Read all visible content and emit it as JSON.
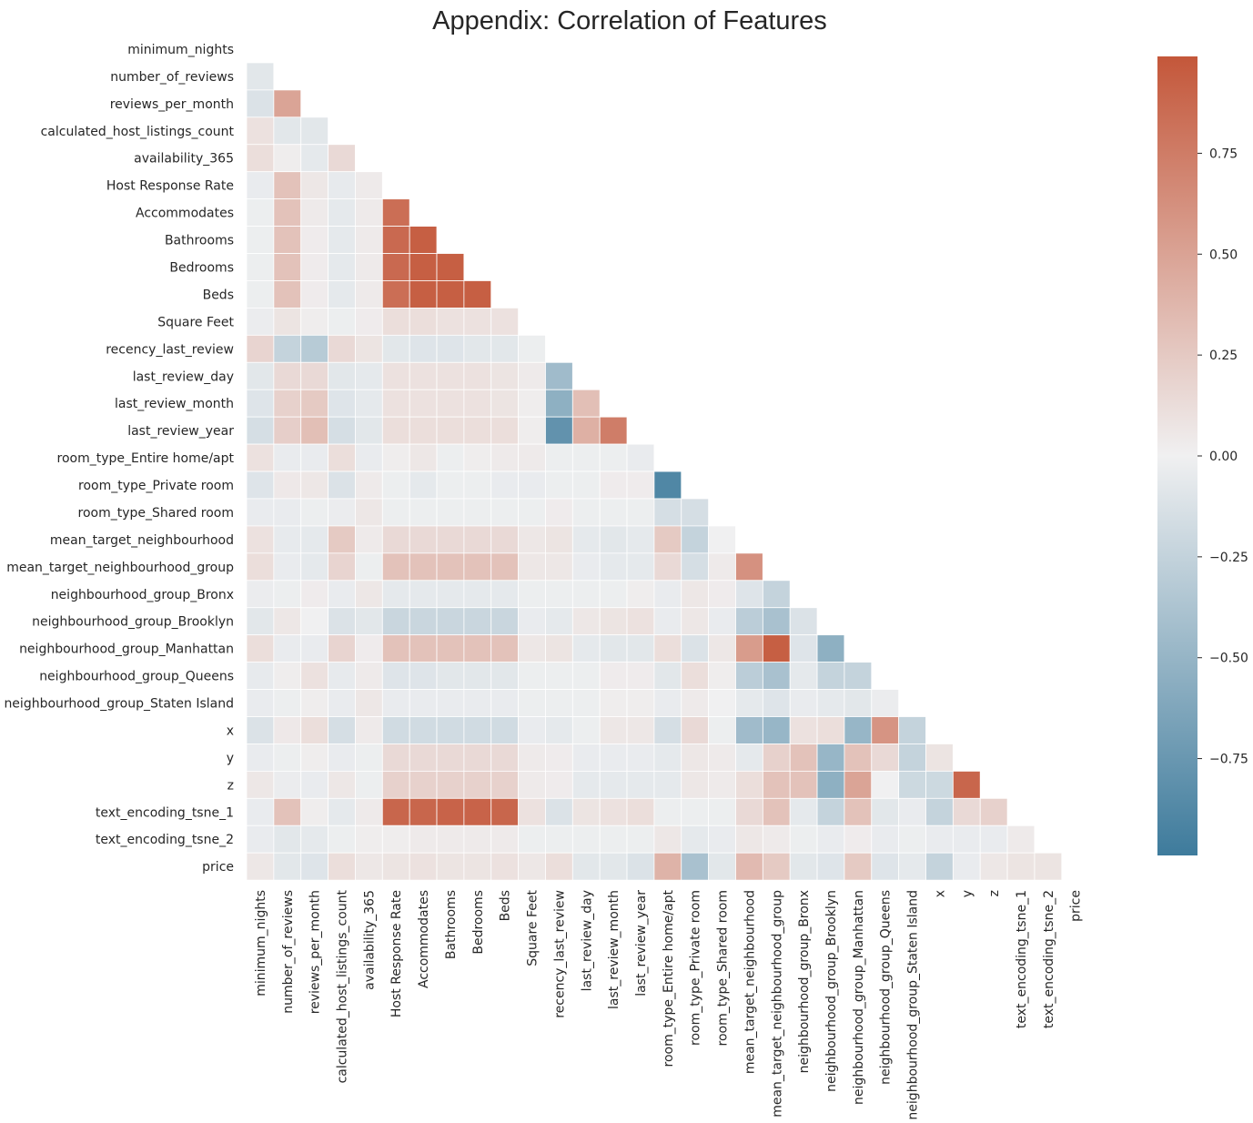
{
  "chart_data": {
    "type": "heatmap",
    "title": "Appendix: Correlation of Features",
    "xlabel": "",
    "ylabel": "",
    "mask": "upper-triangle-and-diagonal",
    "variables": [
      "minimum_nights",
      "number_of_reviews",
      "reviews_per_month",
      "calculated_host_listings_count",
      "availability_365",
      "Host Response Rate",
      "Accommodates",
      "Bathrooms",
      "Bedrooms",
      "Beds",
      "Square Feet",
      "recency_last_review",
      "last_review_day",
      "last_review_month",
      "last_review_year",
      "room_type_Entire home/apt",
      "room_type_Private room",
      "room_type_Shared room",
      "mean_target_neighbourhood",
      "mean_target_neighbourhood_group",
      "neighbourhood_group_Bronx",
      "neighbourhood_group_Brooklyn",
      "neighbourhood_group_Manhattan",
      "neighbourhood_group_Queens",
      "neighbourhood_group_Staten Island",
      "x",
      "y",
      "z",
      "text_encoding_tsne_1",
      "text_encoding_tsne_2",
      "price"
    ],
    "matrix_lower": [
      [],
      [
        -0.08
      ],
      [
        -0.12,
        0.5
      ],
      [
        0.1,
        -0.08,
        -0.08
      ],
      [
        0.12,
        0.02,
        -0.06,
        0.15
      ],
      [
        -0.04,
        0.3,
        0.06,
        -0.05,
        0.04
      ],
      [
        -0.02,
        0.3,
        0.04,
        -0.06,
        0.04,
        0.85
      ],
      [
        -0.02,
        0.3,
        0.03,
        -0.06,
        0.04,
        0.88,
        0.95
      ],
      [
        -0.02,
        0.3,
        0.03,
        -0.06,
        0.04,
        0.88,
        0.95,
        0.95
      ],
      [
        -0.02,
        0.3,
        0.03,
        -0.06,
        0.04,
        0.85,
        0.95,
        0.95,
        0.95
      ],
      [
        -0.03,
        0.08,
        0.02,
        -0.02,
        0.03,
        0.12,
        0.12,
        0.1,
        0.1,
        0.1
      ],
      [
        0.18,
        -0.25,
        -0.32,
        0.15,
        0.08,
        -0.08,
        -0.1,
        -0.1,
        -0.08,
        -0.08,
        -0.02
      ],
      [
        -0.08,
        0.15,
        0.15,
        -0.08,
        -0.06,
        0.1,
        0.1,
        0.1,
        0.1,
        0.08,
        0.04,
        -0.45
      ],
      [
        -0.1,
        0.2,
        0.25,
        -0.1,
        -0.06,
        0.1,
        0.1,
        0.1,
        0.1,
        0.08,
        0.02,
        -0.55,
        0.32
      ],
      [
        -0.15,
        0.22,
        0.32,
        -0.15,
        -0.08,
        0.12,
        0.12,
        0.12,
        0.12,
        0.12,
        0.02,
        -0.8,
        0.42,
        0.75
      ],
      [
        0.1,
        -0.04,
        -0.04,
        0.12,
        -0.04,
        0.02,
        0.06,
        -0.02,
        0.02,
        0.04,
        0.04,
        -0.02,
        -0.02,
        -0.02,
        -0.04
      ],
      [
        -0.1,
        0.05,
        0.06,
        -0.12,
        0.04,
        -0.02,
        -0.06,
        -0.02,
        -0.02,
        -0.04,
        -0.04,
        -0.02,
        -0.02,
        0.03,
        0.03,
        -0.9
      ],
      [
        -0.04,
        -0.04,
        -0.02,
        -0.03,
        0.06,
        -0.02,
        -0.02,
        -0.02,
        -0.02,
        -0.02,
        -0.02,
        0.03,
        -0.02,
        -0.02,
        -0.02,
        -0.15,
        -0.15
      ],
      [
        0.1,
        -0.05,
        -0.06,
        0.25,
        0.04,
        0.15,
        0.15,
        0.15,
        0.15,
        0.15,
        0.06,
        0.08,
        -0.06,
        -0.08,
        -0.06,
        0.25,
        -0.25,
        0.0
      ],
      [
        0.12,
        -0.04,
        -0.06,
        0.18,
        -0.02,
        0.3,
        0.3,
        0.3,
        0.3,
        0.3,
        0.06,
        0.06,
        -0.04,
        -0.06,
        -0.06,
        0.15,
        -0.15,
        0.04,
        0.62
      ],
      [
        -0.03,
        -0.02,
        0.03,
        -0.04,
        0.06,
        -0.06,
        -0.06,
        -0.06,
        -0.06,
        -0.06,
        -0.02,
        -0.02,
        -0.02,
        -0.02,
        0.02,
        -0.04,
        0.06,
        0.03,
        -0.1,
        -0.25
      ],
      [
        -0.08,
        0.06,
        0.0,
        -0.12,
        -0.08,
        -0.22,
        -0.22,
        -0.22,
        -0.22,
        -0.22,
        -0.04,
        -0.06,
        0.06,
        0.08,
        0.1,
        -0.04,
        0.06,
        -0.04,
        -0.3,
        -0.4,
        -0.12
      ],
      [
        0.12,
        -0.04,
        -0.04,
        0.18,
        0.03,
        0.3,
        0.3,
        0.3,
        0.3,
        0.3,
        0.06,
        0.08,
        -0.06,
        -0.08,
        -0.08,
        0.12,
        -0.12,
        0.06,
        0.55,
        0.95,
        -0.1,
        -0.55
      ],
      [
        -0.05,
        0.02,
        0.1,
        -0.05,
        0.04,
        -0.1,
        -0.1,
        -0.08,
        -0.08,
        -0.08,
        -0.02,
        -0.02,
        -0.02,
        0.03,
        0.03,
        -0.08,
        0.12,
        0.02,
        -0.3,
        -0.4,
        -0.06,
        -0.25,
        -0.25
      ],
      [
        -0.04,
        -0.02,
        0.02,
        -0.04,
        0.06,
        -0.04,
        -0.04,
        -0.04,
        -0.04,
        -0.04,
        -0.02,
        -0.02,
        -0.02,
        0.02,
        0.02,
        -0.04,
        0.04,
        0.0,
        -0.06,
        -0.1,
        -0.04,
        -0.06,
        -0.08,
        -0.03
      ],
      [
        -0.12,
        0.05,
        0.12,
        -0.15,
        0.04,
        -0.18,
        -0.18,
        -0.18,
        -0.18,
        -0.18,
        -0.04,
        -0.06,
        -0.02,
        0.06,
        0.06,
        -0.15,
        0.15,
        -0.02,
        -0.45,
        -0.5,
        0.1,
        0.12,
        -0.5,
        0.6,
        -0.25
      ],
      [
        -0.04,
        -0.02,
        0.02,
        -0.04,
        -0.02,
        0.15,
        0.15,
        0.15,
        0.15,
        0.15,
        0.04,
        0.03,
        -0.04,
        -0.04,
        -0.04,
        -0.06,
        0.06,
        0.04,
        -0.06,
        0.2,
        0.3,
        -0.5,
        0.3,
        0.15,
        -0.25,
        0.08
      ],
      [
        0.06,
        -0.03,
        -0.04,
        0.06,
        -0.02,
        0.2,
        0.2,
        0.2,
        0.2,
        0.2,
        0.04,
        0.03,
        -0.06,
        -0.06,
        -0.06,
        -0.06,
        0.06,
        0.04,
        0.12,
        0.3,
        0.3,
        -0.55,
        0.5,
        0.0,
        -0.2,
        -0.2,
        0.9
      ],
      [
        -0.04,
        0.3,
        0.02,
        -0.06,
        0.04,
        0.9,
        0.9,
        0.92,
        0.92,
        0.9,
        0.1,
        -0.12,
        0.08,
        0.1,
        0.12,
        -0.02,
        -0.02,
        -0.02,
        0.15,
        0.3,
        -0.06,
        -0.25,
        0.3,
        -0.08,
        -0.04,
        -0.25,
        0.15,
        0.2
      ],
      [
        -0.04,
        -0.08,
        -0.06,
        -0.02,
        0.02,
        0.02,
        0.04,
        0.04,
        0.04,
        0.04,
        -0.02,
        -0.02,
        -0.02,
        -0.02,
        -0.02,
        0.06,
        -0.06,
        -0.04,
        0.06,
        0.04,
        -0.02,
        -0.04,
        0.03,
        -0.04,
        -0.02,
        -0.04,
        -0.04,
        -0.04,
        0.04
      ],
      [
        0.06,
        -0.08,
        -0.1,
        0.12,
        0.06,
        0.08,
        0.1,
        0.08,
        0.08,
        0.1,
        0.06,
        0.12,
        -0.08,
        -0.08,
        -0.12,
        0.4,
        -0.4,
        -0.08,
        0.35,
        0.25,
        -0.08,
        -0.1,
        0.25,
        -0.1,
        -0.06,
        -0.25,
        -0.04,
        0.06,
        0.08,
        0.08
      ]
    ],
    "colormap": {
      "type": "diverging",
      "low_color": "#3e7b9c",
      "mid_color": "#f0f0f1",
      "high_color": "#c4573a",
      "vmin": -1.0,
      "vmax": 1.0
    },
    "colorbar": {
      "ticks": [
        "−0.75",
        "−0.50",
        "−0.25",
        "0.00",
        "0.25",
        "0.50",
        "0.75"
      ],
      "tick_values": [
        -0.75,
        -0.5,
        -0.25,
        0.0,
        0.25,
        0.5,
        0.75
      ],
      "range": [
        -0.99,
        0.99
      ]
    }
  }
}
